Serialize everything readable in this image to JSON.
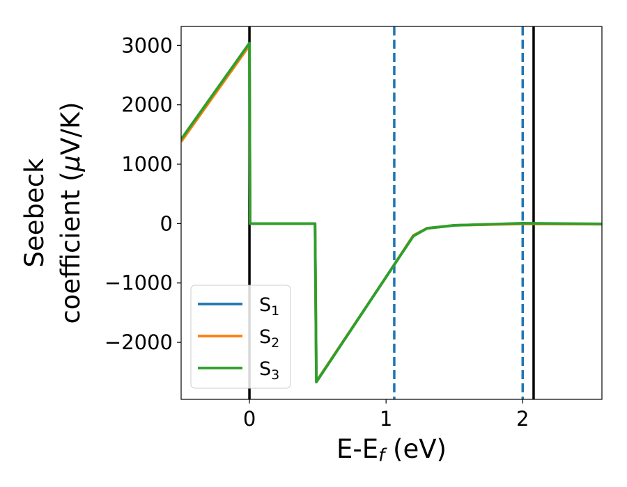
{
  "chart_data": {
    "type": "line",
    "xlabel": {
      "main": "E-E",
      "sub": "f",
      "unit": " (eV)"
    },
    "ylabel": {
      "line1": "Seebeck",
      "line2": "coefficient  (",
      "mu": "μ",
      "unit": "V/K)"
    },
    "xlim": [
      -0.5,
      2.58
    ],
    "ylim": [
      -2960,
      3320
    ],
    "x_ticks": [
      0,
      1,
      2
    ],
    "y_ticks": [
      -2000,
      -1000,
      0,
      1000,
      2000,
      3000
    ],
    "x_tick_labels": [
      "0",
      "1",
      "2"
    ],
    "y_tick_labels": [
      "−2000",
      "−1000",
      "0",
      "1000",
      "2000",
      "3000"
    ],
    "grid": false,
    "legend_position": "lower-left",
    "series": [
      {
        "name": {
          "base": "S",
          "sub": "1"
        },
        "color": "#1f77b4",
        "x": [
          -0.5,
          0.0,
          0.005,
          0.48,
          0.49,
          1.0,
          1.2,
          1.3,
          1.5,
          2.0,
          2.58
        ],
        "y": [
          1400,
          3030,
          0,
          0,
          -2660,
          -900,
          -200,
          -80,
          -30,
          0,
          -10
        ]
      },
      {
        "name": {
          "base": "S",
          "sub": "2"
        },
        "color": "#ff7f0e",
        "x": [
          -0.5,
          0.0,
          0.005,
          0.48,
          0.49,
          1.0,
          1.2,
          1.3,
          1.5,
          2.0,
          2.58
        ],
        "y": [
          1380,
          3000,
          0,
          0,
          -2660,
          -900,
          -200,
          -80,
          -30,
          -5,
          -10
        ]
      },
      {
        "name": {
          "base": "S",
          "sub": "3"
        },
        "color": "#2ca02c",
        "x": [
          -0.5,
          0.0,
          0.005,
          0.48,
          0.49,
          1.0,
          1.2,
          1.3,
          1.5,
          2.0,
          2.58
        ],
        "y": [
          1420,
          3040,
          0,
          0,
          -2670,
          -900,
          -210,
          -80,
          -30,
          5,
          -5
        ]
      }
    ],
    "vertical_lines": [
      {
        "x": 0.0,
        "style": "solid",
        "color": "#000000"
      },
      {
        "x": 1.06,
        "style": "dashed",
        "color": "#1f77b4"
      },
      {
        "x": 2.0,
        "style": "dashed",
        "color": "#1f77b4"
      },
      {
        "x": 2.08,
        "style": "solid",
        "color": "#000000"
      }
    ]
  }
}
